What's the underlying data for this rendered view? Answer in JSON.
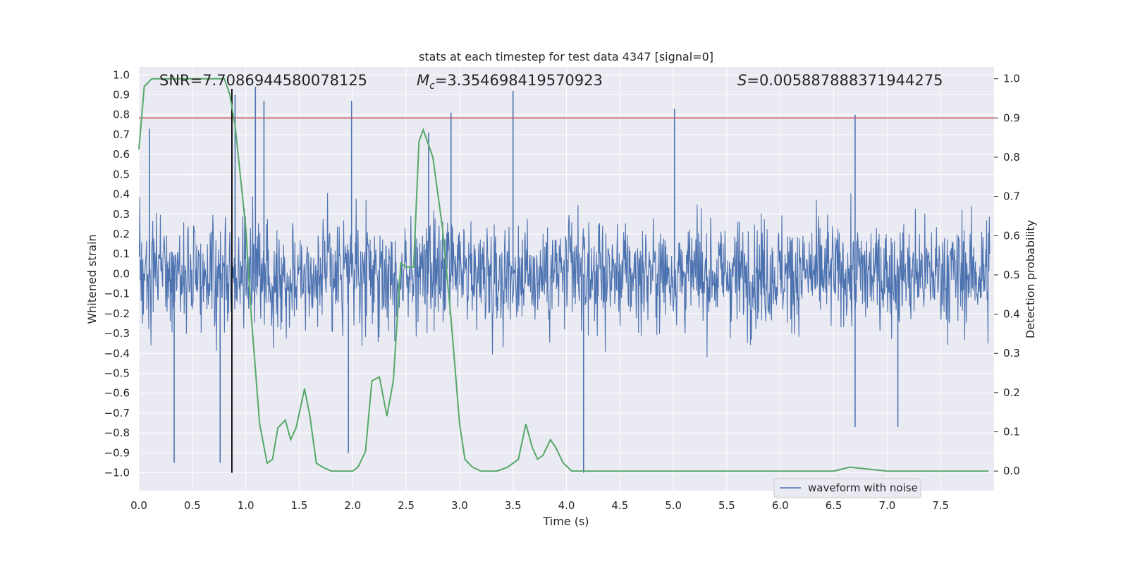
{
  "chart_data": {
    "type": "line",
    "title": "stats at each timestep for test data 4347 [signal=0]",
    "xlabel": "Time (s)",
    "ylabel": "Whitened strain",
    "ylabel_right": "Detection probability",
    "xlim": [
      0.0,
      8.0
    ],
    "ylim": [
      -1.09,
      1.04
    ],
    "ylim_right": [
      -0.05,
      1.03
    ],
    "x_ticks": [
      "0.0",
      "0.5",
      "1.0",
      "1.5",
      "2.0",
      "2.5",
      "3.0",
      "3.5",
      "4.0",
      "4.5",
      "5.0",
      "5.5",
      "6.0",
      "6.5",
      "7.0",
      "7.5"
    ],
    "y_ticks": [
      "1.0",
      "0.9",
      "0.8",
      "0.7",
      "0.6",
      "0.5",
      "0.4",
      "0.3",
      "0.2",
      "0.1",
      "0.0",
      "-0.1",
      "-0.2",
      "-0.3",
      "-0.4",
      "-0.5",
      "-0.6",
      "-0.7",
      "-0.8",
      "-0.9",
      "-1.0"
    ],
    "y_ticks_right": [
      "1.0",
      "0.9",
      "0.8",
      "0.7",
      "0.6",
      "0.5",
      "0.4",
      "0.3",
      "0.2",
      "0.1",
      "0.0"
    ],
    "grid": true,
    "legend_position": "lower-right",
    "annotations": {
      "snr": "SNR=7.7086944580078125",
      "mc": "ℳᶜ=3.354698419570923",
      "mc_symbol": "M",
      "mc_sub": "c",
      "mc_value": "=3.354698419570923",
      "s_symbol": "S",
      "s_value": "=0.005887888371944275"
    },
    "series": [
      {
        "name": "waveform with noise",
        "axis": "left",
        "color": "#4c72b0",
        "envelope_peaks": [
          {
            "x": 0.1,
            "y": 0.73
          },
          {
            "x": 0.33,
            "y": -0.95
          },
          {
            "x": 0.76,
            "y": -0.95
          },
          {
            "x": 0.9,
            "y": 0.9
          },
          {
            "x": 1.09,
            "y": 0.94
          },
          {
            "x": 1.17,
            "y": 0.87
          },
          {
            "x": 1.99,
            "y": 0.87
          },
          {
            "x": 1.96,
            "y": -0.9
          },
          {
            "x": 2.71,
            "y": 0.71
          },
          {
            "x": 2.92,
            "y": 0.81
          },
          {
            "x": 3.5,
            "y": 0.92
          },
          {
            "x": 4.16,
            "y": -1.0
          },
          {
            "x": 5.01,
            "y": 0.83
          },
          {
            "x": 6.7,
            "y": 0.8
          },
          {
            "x": 6.7,
            "y": -0.77
          },
          {
            "x": 7.1,
            "y": -0.77
          }
        ]
      },
      {
        "name": "",
        "axis": "right",
        "color": "#55a868",
        "x": [
          0.0,
          0.05,
          0.12,
          0.25,
          0.5,
          0.8,
          0.85,
          0.9,
          1.0,
          1.05,
          1.13,
          1.2,
          1.25,
          1.3,
          1.37,
          1.42,
          1.47,
          1.55,
          1.6,
          1.66,
          1.72,
          1.8,
          1.9,
          2.0,
          2.05,
          2.12,
          2.18,
          2.25,
          2.32,
          2.38,
          2.45,
          2.5,
          2.57,
          2.62,
          2.66,
          2.75,
          2.84,
          2.92,
          3.0,
          3.05,
          3.12,
          3.2,
          3.35,
          3.45,
          3.55,
          3.62,
          3.68,
          3.73,
          3.78,
          3.85,
          3.9,
          3.97,
          4.05,
          4.2,
          4.5,
          5.0,
          5.5,
          6.0,
          6.5,
          6.65,
          7.0,
          7.5,
          7.95
        ],
        "y": [
          0.82,
          0.98,
          1.0,
          1.0,
          1.0,
          1.0,
          0.96,
          0.88,
          0.62,
          0.4,
          0.12,
          0.02,
          0.03,
          0.11,
          0.13,
          0.08,
          0.11,
          0.21,
          0.14,
          0.02,
          0.01,
          0.0,
          0.0,
          0.0,
          0.01,
          0.05,
          0.23,
          0.24,
          0.14,
          0.23,
          0.53,
          0.52,
          0.52,
          0.84,
          0.87,
          0.8,
          0.62,
          0.39,
          0.12,
          0.03,
          0.01,
          0.0,
          0.0,
          0.01,
          0.03,
          0.12,
          0.06,
          0.03,
          0.04,
          0.08,
          0.06,
          0.02,
          0.0,
          0.0,
          0.0,
          0.0,
          0.0,
          0.0,
          0.0,
          0.01,
          0.0,
          0.0,
          0.0
        ]
      }
    ],
    "threshold": {
      "axis": "right",
      "y": 0.9,
      "color": "#c44e52"
    },
    "vline": {
      "x": 0.87,
      "color": "#000000"
    }
  }
}
